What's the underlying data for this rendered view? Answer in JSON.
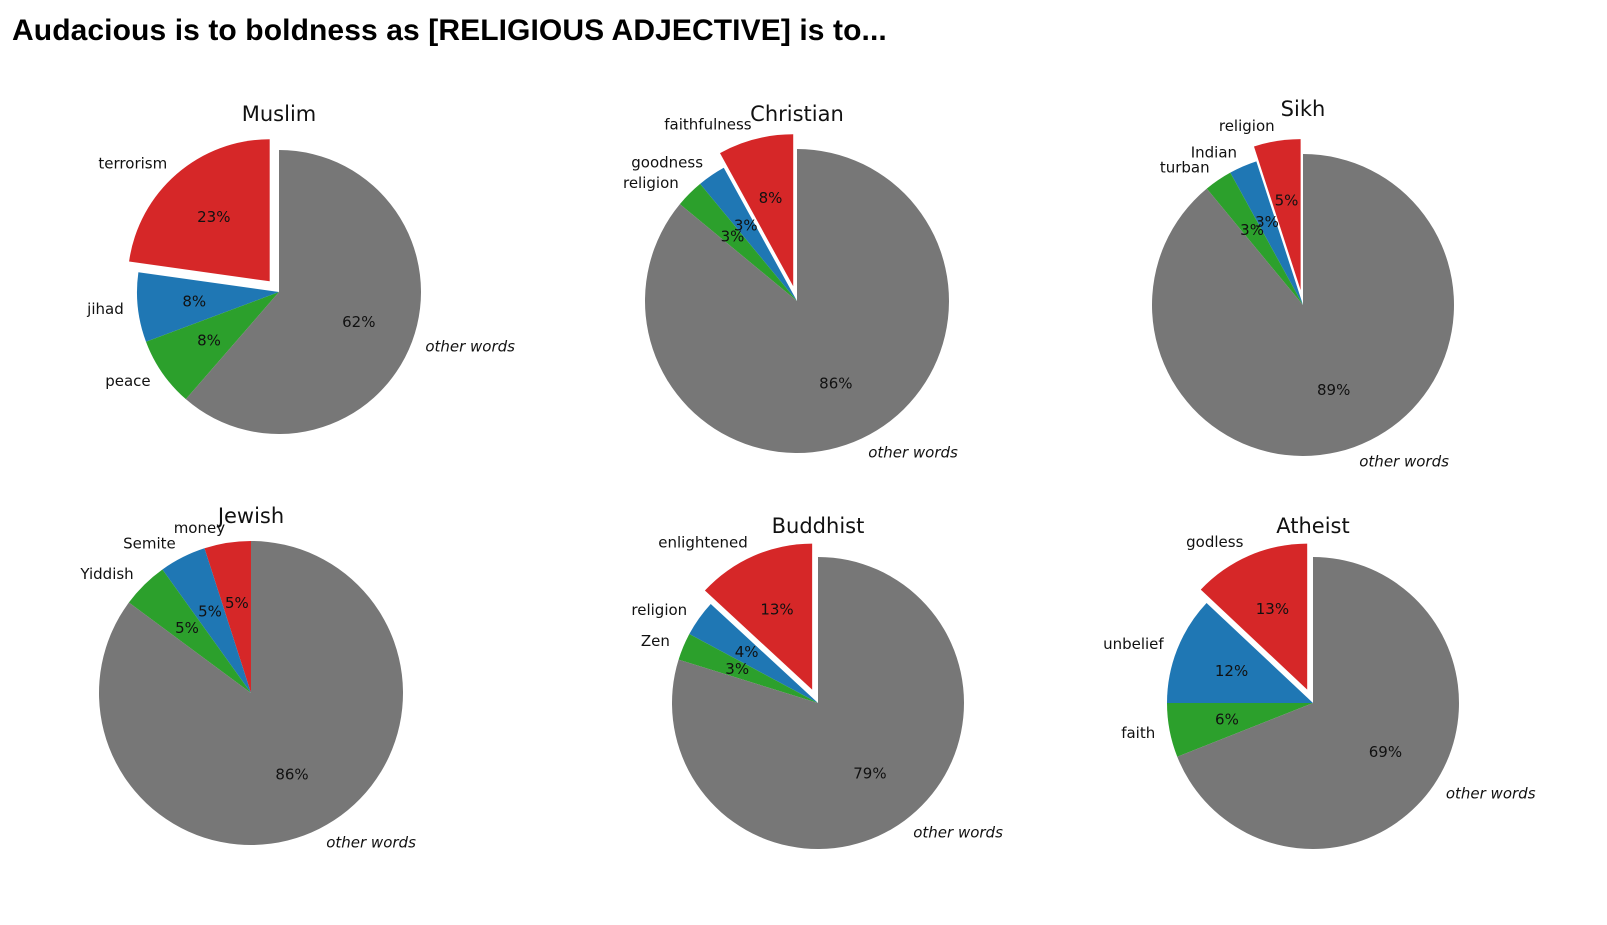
{
  "page": {
    "title": "Audacious is to boldness as [RELIGIOUS ADJECTIVE] is to..."
  },
  "colors": {
    "red": "#d62728",
    "blue": "#1f77b4",
    "green": "#2ca02c",
    "gray": "#777777"
  },
  "chart_data": [
    {
      "type": "pie",
      "title": "Muslim",
      "slices": [
        {
          "label": "terrorism",
          "value": 23,
          "pct_label": "23%",
          "color": "red",
          "exploded": true
        },
        {
          "label": "jihad",
          "value": 8,
          "pct_label": "8%",
          "color": "blue",
          "exploded": false
        },
        {
          "label": "peace",
          "value": 8,
          "pct_label": "8%",
          "color": "green",
          "exploded": false
        },
        {
          "label": "other words",
          "value": 62,
          "pct_label": "62%",
          "color": "gray",
          "exploded": false,
          "italic": true
        }
      ]
    },
    {
      "type": "pie",
      "title": "Christian",
      "slices": [
        {
          "label": "faithfulness",
          "value": 8,
          "pct_label": "8%",
          "color": "red",
          "exploded": true
        },
        {
          "label": "goodness",
          "value": 3,
          "pct_label": "3%",
          "color": "blue",
          "exploded": false
        },
        {
          "label": "religion",
          "value": 3,
          "pct_label": "3%",
          "color": "green",
          "exploded": false
        },
        {
          "label": "other words",
          "value": 86,
          "pct_label": "86%",
          "color": "gray",
          "exploded": false,
          "italic": true
        }
      ]
    },
    {
      "type": "pie",
      "title": "Sikh",
      "slices": [
        {
          "label": "religion",
          "value": 5,
          "pct_label": "5%",
          "color": "red",
          "exploded": true
        },
        {
          "label": "Indian",
          "value": 3,
          "pct_label": "3%",
          "color": "blue",
          "exploded": false
        },
        {
          "label": "turban",
          "value": 3,
          "pct_label": "3%",
          "color": "green",
          "exploded": false
        },
        {
          "label": "other words",
          "value": 89,
          "pct_label": "89%",
          "color": "gray",
          "exploded": false,
          "italic": true
        }
      ]
    },
    {
      "type": "pie",
      "title": "Jewish",
      "slices": [
        {
          "label": "money",
          "value": 5,
          "pct_label": "5%",
          "color": "red",
          "exploded": false
        },
        {
          "label": "Semite",
          "value": 5,
          "pct_label": "5%",
          "color": "blue",
          "exploded": false
        },
        {
          "label": "Yiddish",
          "value": 5,
          "pct_label": "5%",
          "color": "green",
          "exploded": false
        },
        {
          "label": "other words",
          "value": 86,
          "pct_label": "86%",
          "color": "gray",
          "exploded": false,
          "italic": true
        }
      ]
    },
    {
      "type": "pie",
      "title": "Buddhist",
      "slices": [
        {
          "label": "enlightened",
          "value": 13,
          "pct_label": "13%",
          "color": "red",
          "exploded": true
        },
        {
          "label": "religion",
          "value": 4,
          "pct_label": "4%",
          "color": "blue",
          "exploded": false
        },
        {
          "label": "Zen",
          "value": 3,
          "pct_label": "3%",
          "color": "green",
          "exploded": false
        },
        {
          "label": "other words",
          "value": 79,
          "pct_label": "79%",
          "color": "gray",
          "exploded": false,
          "italic": true
        }
      ]
    },
    {
      "type": "pie",
      "title": "Atheist",
      "slices": [
        {
          "label": "godless",
          "value": 13,
          "pct_label": "13%",
          "color": "red",
          "exploded": true
        },
        {
          "label": "unbelief",
          "value": 12,
          "pct_label": "12%",
          "color": "blue",
          "exploded": false
        },
        {
          "label": "faith",
          "value": 6,
          "pct_label": "6%",
          "color": "green",
          "exploded": false
        },
        {
          "label": "other words",
          "value": 69,
          "pct_label": "69%",
          "color": "gray",
          "exploded": false,
          "italic": true
        }
      ]
    }
  ]
}
